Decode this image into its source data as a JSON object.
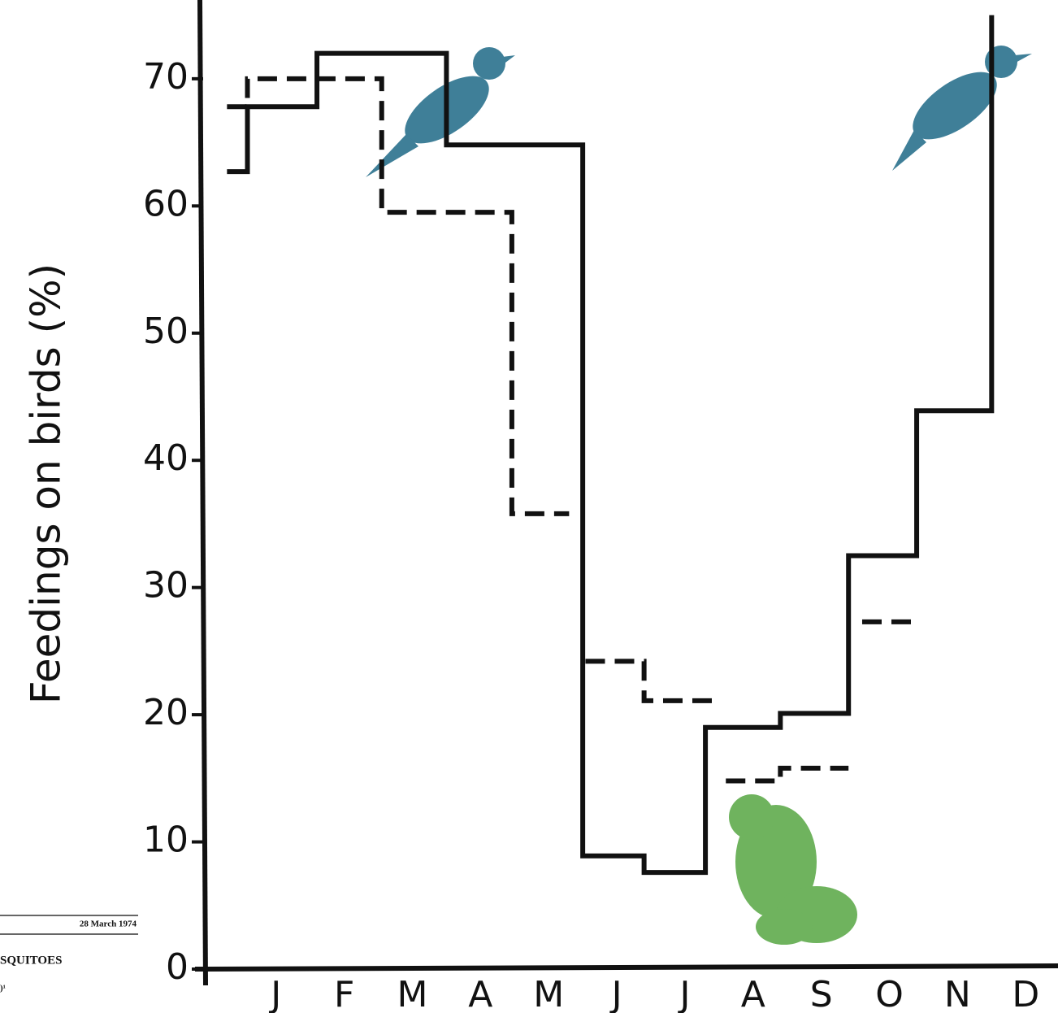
{
  "chart_data": {
    "type": "step",
    "y_label": "Feedings on birds (%)",
    "ylim": [
      0,
      76
    ],
    "yticks": [
      0,
      10,
      20,
      30,
      40,
      50,
      60,
      70
    ],
    "xlim": [
      -0.07,
      12.45
    ],
    "xticks": [
      {
        "value": 1,
        "label": "J"
      },
      {
        "value": 2,
        "label": "F"
      },
      {
        "value": 3,
        "label": "M"
      },
      {
        "value": 4,
        "label": "A"
      },
      {
        "value": 5,
        "label": "M"
      },
      {
        "value": 6,
        "label": "J"
      },
      {
        "value": 7,
        "label": "J"
      },
      {
        "value": 8,
        "label": "A"
      },
      {
        "value": 9,
        "label": "S"
      },
      {
        "value": 10,
        "label": "O"
      },
      {
        "value": 11,
        "label": "N"
      },
      {
        "value": 12,
        "label": "D"
      }
    ],
    "series": [
      {
        "color": "#111111",
        "dash": "solid",
        "x": [
          0.28,
          0.58,
          1.6,
          3.5,
          5.5,
          6.4,
          7.3,
          8.4,
          9.4,
          10.4,
          11.5
        ],
        "values": [
          62.7,
          67.8,
          72,
          64.8,
          8.9,
          7.6,
          19,
          20.1,
          32.5,
          43.9,
          75
        ]
      },
      {
        "color": "#111111",
        "dash": "dashed",
        "x": [
          0.28,
          0.58,
          2.55,
          4.46,
          5.3,
          5.54,
          6.4,
          7.4,
          7.6,
          8.4,
          9.4,
          9.6,
          10.4
        ],
        "values": [
          67.8,
          70,
          59.5,
          35.8,
          null,
          24.2,
          21.1,
          null,
          14.8,
          15.8,
          null,
          27.3,
          null
        ]
      }
    ],
    "annotations": [
      "28 March 1974",
      "SQUITOES",
      ")¹"
    ]
  }
}
